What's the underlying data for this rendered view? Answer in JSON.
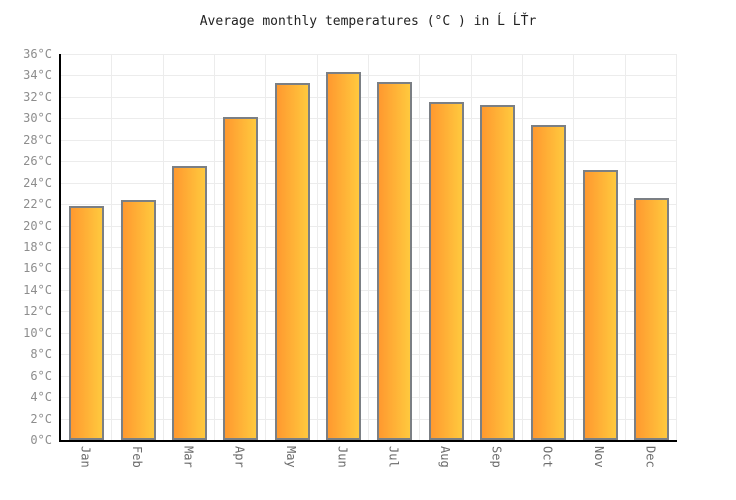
{
  "title": "Average monthly temperatures (°C ) in Ĺ ĹŤr",
  "chart_data": {
    "type": "bar",
    "title": "Average monthly temperatures (°C ) in Ĺ ĹŤr",
    "categories": [
      "Jan",
      "Feb",
      "Mar",
      "Apr",
      "May",
      "Jun",
      "Jul",
      "Aug",
      "Sep",
      "Oct",
      "Nov",
      "Dec"
    ],
    "values": [
      21.8,
      22.4,
      25.6,
      30.1,
      33.3,
      34.3,
      33.4,
      31.5,
      31.2,
      29.4,
      25.2,
      22.6
    ],
    "xlabel": "",
    "ylabel": "",
    "ylim": [
      0,
      36
    ],
    "ytick_step": 2,
    "ytick_suffix": "°C",
    "grid": true,
    "legend": false,
    "colors": {
      "bar_gradient_left": "#ff992f",
      "bar_gradient_right": "#ffc93e",
      "bar_border": "#7b7f84",
      "axis": "#000000",
      "grid": "#ececec",
      "y_tick_label": "#8d8d8d",
      "x_tick_label": "#6b6b6b",
      "title": "#222222",
      "background": "#ffffff"
    }
  }
}
